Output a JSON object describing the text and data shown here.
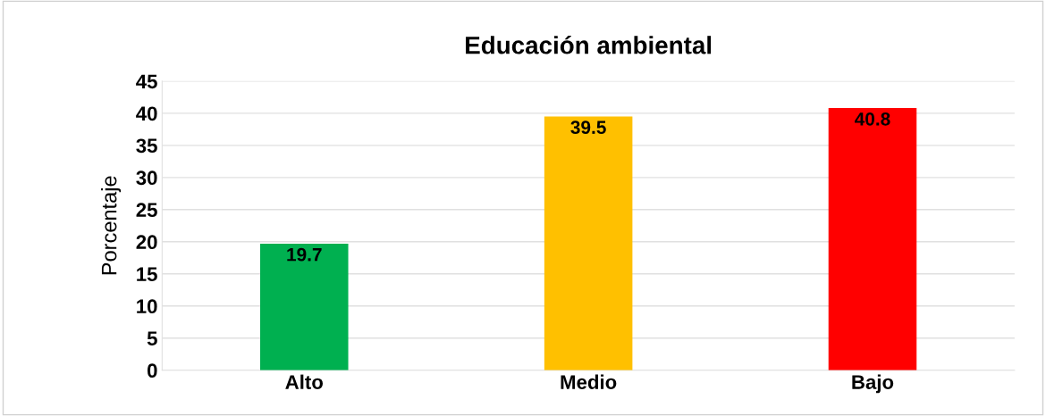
{
  "chart_data": {
    "type": "bar",
    "title": "Educación ambiental",
    "ylabel": "Porcentaje",
    "categories": [
      "Alto",
      "Medio",
      "Bajo"
    ],
    "values": [
      19.7,
      39.5,
      40.8
    ],
    "colors": [
      "#00b050",
      "#ffc000",
      "#ff0000"
    ],
    "ylim": [
      0,
      45
    ],
    "yticks": [
      0,
      5,
      10,
      15,
      20,
      25,
      30,
      35,
      40,
      45
    ],
    "grid": "y",
    "data_labels": true
  }
}
